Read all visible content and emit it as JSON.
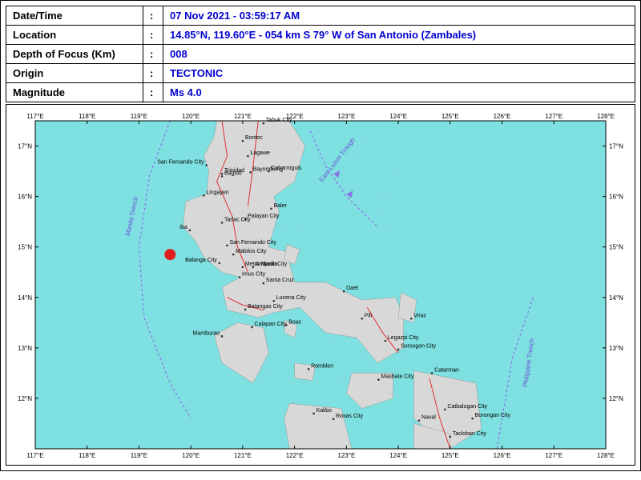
{
  "table": {
    "rows": [
      {
        "label": "Date/Time",
        "value": "07 Nov 2021 - 03:59:17 AM"
      },
      {
        "label": "Location",
        "value": "14.85°N, 119.60°E - 054 km S 79° W of San Antonio (Zambales)"
      },
      {
        "label": "Depth of Focus (Km)",
        "value": "008"
      },
      {
        "label": "Origin",
        "value": "TECTONIC"
      },
      {
        "label": "Magnitude",
        "value": "Ms 4.0"
      }
    ],
    "label_color": "#000000",
    "value_color": "#0000d0"
  },
  "map": {
    "bg_ocean": "#7ee0e0",
    "bg_land": "#d8d8d8",
    "fault_color": "#e03030",
    "trench_color": "#8a70e8",
    "epicenter_color": "#e02020",
    "grid_color": "#888888",
    "xlim": [
      117,
      128
    ],
    "ylim": [
      11,
      17.5
    ],
    "xticks": [
      "117°E",
      "118°E",
      "119°E",
      "120°E",
      "121°E",
      "122°E",
      "123°E",
      "124°E",
      "125°E",
      "126°E",
      "127°E",
      "128°E"
    ],
    "yticks": [
      "12°N",
      "13°N",
      "14°N",
      "15°N",
      "16°N",
      "17°N"
    ],
    "epicenter": {
      "lon": 119.6,
      "lat": 14.85
    },
    "trenches": [
      {
        "name": "Manila Trench",
        "label_angle": -78
      },
      {
        "name": "East Luzon Trough",
        "label_angle": -55
      },
      {
        "name": "Philippine Trench",
        "label_angle": -80
      }
    ],
    "cities": [
      {
        "name": "Tabuk City",
        "lon": 121.4,
        "lat": 17.45
      },
      {
        "name": "Bontoc",
        "lon": 121.0,
        "lat": 17.1
      },
      {
        "name": "Lagawe",
        "lon": 121.1,
        "lat": 16.8
      },
      {
        "name": "San Fernando City",
        "lon": 120.3,
        "lat": 16.62,
        "anchor": "end"
      },
      {
        "name": "Trinidad",
        "lon": 120.6,
        "lat": 16.45
      },
      {
        "name": "Baguio",
        "lon": 120.6,
        "lat": 16.4
      },
      {
        "name": "Cabarroguis",
        "lon": 121.5,
        "lat": 16.5
      },
      {
        "name": "Bayombong",
        "lon": 121.15,
        "lat": 16.48
      },
      {
        "name": "Lingayen",
        "lon": 120.25,
        "lat": 16.02
      },
      {
        "name": "Baler",
        "lon": 121.55,
        "lat": 15.76
      },
      {
        "name": "Palayan City",
        "lon": 121.05,
        "lat": 15.55
      },
      {
        "name": "Tarlac City",
        "lon": 120.6,
        "lat": 15.48
      },
      {
        "name": "Iba",
        "lon": 119.98,
        "lat": 15.33,
        "anchor": "end"
      },
      {
        "name": "San Fernando City",
        "lon": 120.7,
        "lat": 15.03
      },
      {
        "name": "Malolos City",
        "lon": 120.82,
        "lat": 14.85
      },
      {
        "name": "Metro Manila",
        "lon": 121.0,
        "lat": 14.6
      },
      {
        "name": "Balanga City",
        "lon": 120.55,
        "lat": 14.68,
        "anchor": "end"
      },
      {
        "name": "Antipolo City",
        "lon": 121.2,
        "lat": 14.6
      },
      {
        "name": "Imus City",
        "lon": 120.94,
        "lat": 14.4
      },
      {
        "name": "Santa Cruz",
        "lon": 121.4,
        "lat": 14.28
      },
      {
        "name": "Batangas City",
        "lon": 121.05,
        "lat": 13.76
      },
      {
        "name": "Lucena City",
        "lon": 121.6,
        "lat": 13.93
      },
      {
        "name": "Daet",
        "lon": 122.95,
        "lat": 14.12
      },
      {
        "name": "Virac",
        "lon": 124.25,
        "lat": 13.58
      },
      {
        "name": "Pili",
        "lon": 123.3,
        "lat": 13.58
      },
      {
        "name": "Calapan City",
        "lon": 121.18,
        "lat": 13.41
      },
      {
        "name": "Boac",
        "lon": 121.84,
        "lat": 13.45
      },
      {
        "name": "Mamburao",
        "lon": 120.6,
        "lat": 13.23,
        "anchor": "end"
      },
      {
        "name": "Legazpi City",
        "lon": 123.75,
        "lat": 13.14
      },
      {
        "name": "Sorsogon City",
        "lon": 124.0,
        "lat": 12.97
      },
      {
        "name": "Romblon",
        "lon": 122.27,
        "lat": 12.58
      },
      {
        "name": "Masbate City",
        "lon": 123.62,
        "lat": 12.37
      },
      {
        "name": "Catarman",
        "lon": 124.65,
        "lat": 12.5
      },
      {
        "name": "Kalibo",
        "lon": 122.37,
        "lat": 11.7
      },
      {
        "name": "Roxas City",
        "lon": 122.75,
        "lat": 11.59
      },
      {
        "name": "Catbalogan City",
        "lon": 124.9,
        "lat": 11.78
      },
      {
        "name": "Naval",
        "lon": 124.4,
        "lat": 11.56
      },
      {
        "name": "Borongan City",
        "lon": 125.43,
        "lat": 11.6
      },
      {
        "name": "Tacloban City",
        "lon": 125.0,
        "lat": 11.24
      }
    ]
  }
}
